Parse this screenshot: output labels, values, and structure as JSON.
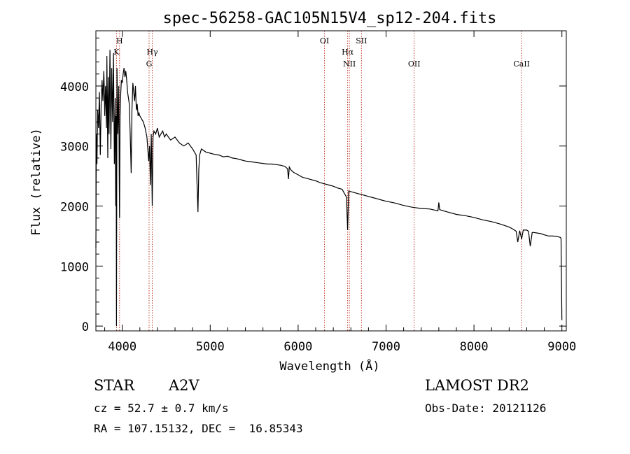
{
  "chart_data": {
    "type": "line",
    "title": "spec-56258-GAC105N15V4_sp12-204.fits",
    "xlabel": "Wavelength (Å)",
    "ylabel": "Flux (relative)",
    "xlim": [
      3700,
      9050
    ],
    "ylim": [
      -80,
      4920
    ],
    "x_ticks": [
      4000,
      5000,
      6000,
      7000,
      8000,
      9000
    ],
    "x_tick_labels": [
      "4000",
      "5000",
      "6000",
      "7000",
      "8000",
      "9000"
    ],
    "y_ticks": [
      0,
      1000,
      2000,
      3000,
      4000
    ],
    "y_tick_labels": [
      "0",
      "1000",
      "2000",
      "3000",
      "4000"
    ],
    "line_marks": [
      {
        "label": "H",
        "wavelength": 3969,
        "row": 0
      },
      {
        "label": "K",
        "wavelength": 3934,
        "row": 1
      },
      {
        "label": "Hγ",
        "wavelength": 4341,
        "row": 1
      },
      {
        "label": "G",
        "wavelength": 4305,
        "row": 2
      },
      {
        "label": "OI",
        "wavelength": 6300,
        "row": 0
      },
      {
        "label": "SII",
        "wavelength": 6720,
        "row": 0
      },
      {
        "label": "Hα",
        "wavelength": 6563,
        "row": 1
      },
      {
        "label": "NII",
        "wavelength": 6583,
        "row": 2
      },
      {
        "label": "OII",
        "wavelength": 7320,
        "row": 2
      },
      {
        "label": "CaII",
        "wavelength": 8542,
        "row": 2
      }
    ],
    "series": [
      {
        "name": "spectrum",
        "x": [
          3700,
          3705,
          3712,
          3720,
          3730,
          3740,
          3750,
          3760,
          3770,
          3780,
          3790,
          3795,
          3800,
          3810,
          3820,
          3825,
          3835,
          3840,
          3850,
          3860,
          3870,
          3880,
          3890,
          3900,
          3910,
          3920,
          3925,
          3930,
          3934,
          3940,
          3950,
          3960,
          3965,
          3969,
          3975,
          3980,
          3990,
          4000,
          4010,
          4020,
          4030,
          4040,
          4050,
          4060,
          4070,
          4080,
          4090,
          4101,
          4110,
          4120,
          4130,
          4140,
          4150,
          4160,
          4170,
          4180,
          4190,
          4200,
          4220,
          4240,
          4260,
          4280,
          4300,
          4310,
          4320,
          4330,
          4341,
          4350,
          4360,
          4380,
          4400,
          4420,
          4440,
          4460,
          4480,
          4500,
          4550,
          4600,
          4650,
          4700,
          4750,
          4800,
          4840,
          4850,
          4861,
          4870,
          4880,
          4900,
          4950,
          5000,
          5050,
          5100,
          5150,
          5200,
          5250,
          5300,
          5350,
          5400,
          5450,
          5500,
          5550,
          5600,
          5650,
          5700,
          5750,
          5800,
          5850,
          5880,
          5890,
          5900,
          5920,
          5950,
          6000,
          6050,
          6100,
          6150,
          6200,
          6250,
          6300,
          6350,
          6400,
          6450,
          6500,
          6530,
          6550,
          6563,
          6575,
          6600,
          6650,
          6700,
          6750,
          6800,
          6850,
          6900,
          6950,
          7000,
          7100,
          7200,
          7300,
          7400,
          7500,
          7590,
          7600,
          7610,
          7700,
          7800,
          7900,
          8000,
          8100,
          8200,
          8300,
          8400,
          8450,
          8480,
          8498,
          8520,
          8542,
          8560,
          8600,
          8620,
          8640,
          8662,
          8680,
          8720,
          8760,
          8800,
          8850,
          8900,
          8950,
          8980,
          8990,
          9000
        ],
        "y": [
          1300,
          3200,
          2700,
          3600,
          3300,
          3900,
          2850,
          3700,
          4100,
          3750,
          4250,
          4000,
          3500,
          4000,
          3300,
          4500,
          2800,
          4150,
          3200,
          4600,
          2950,
          4300,
          3400,
          4550,
          2700,
          3800,
          2000,
          3500,
          0,
          4300,
          3200,
          4000,
          2600,
          1800,
          3500,
          3800,
          4100,
          4050,
          4200,
          4300,
          4150,
          4250,
          4100,
          3900,
          3800,
          3700,
          3200,
          2550,
          3600,
          4050,
          3900,
          3750,
          4000,
          3600,
          3700,
          3500,
          3550,
          3500,
          3450,
          3400,
          3300,
          3150,
          2750,
          3000,
          2350,
          3200,
          2000,
          3150,
          3250,
          3200,
          3300,
          3150,
          3200,
          3250,
          3150,
          3200,
          3100,
          3150,
          3050,
          3000,
          3050,
          2950,
          2850,
          2400,
          1900,
          2600,
          2850,
          2950,
          2900,
          2880,
          2860,
          2850,
          2820,
          2830,
          2800,
          2790,
          2770,
          2750,
          2740,
          2730,
          2720,
          2710,
          2700,
          2700,
          2690,
          2680,
          2660,
          2620,
          2450,
          2650,
          2600,
          2560,
          2520,
          2480,
          2460,
          2440,
          2420,
          2390,
          2370,
          2350,
          2330,
          2300,
          2280,
          2200,
          2150,
          1600,
          2250,
          2240,
          2220,
          2200,
          2180,
          2160,
          2140,
          2120,
          2100,
          2080,
          2050,
          2010,
          1980,
          1960,
          1950,
          1920,
          2060,
          1940,
          1900,
          1860,
          1840,
          1810,
          1770,
          1740,
          1700,
          1650,
          1610,
          1580,
          1400,
          1590,
          1450,
          1600,
          1600,
          1580,
          1330,
          1560,
          1560,
          1550,
          1540,
          1520,
          1500,
          1500,
          1490,
          1480,
          1460,
          100
        ]
      }
    ]
  },
  "footer": {
    "class": "STAR",
    "subclass": "A2V",
    "cz": "cz = 52.7 ± 0.7 km/s",
    "coords": "RA = 107.15132, DEC =  16.85343",
    "survey": "LAMOST DR2",
    "obs_date": "Obs-Date: 20121126"
  }
}
